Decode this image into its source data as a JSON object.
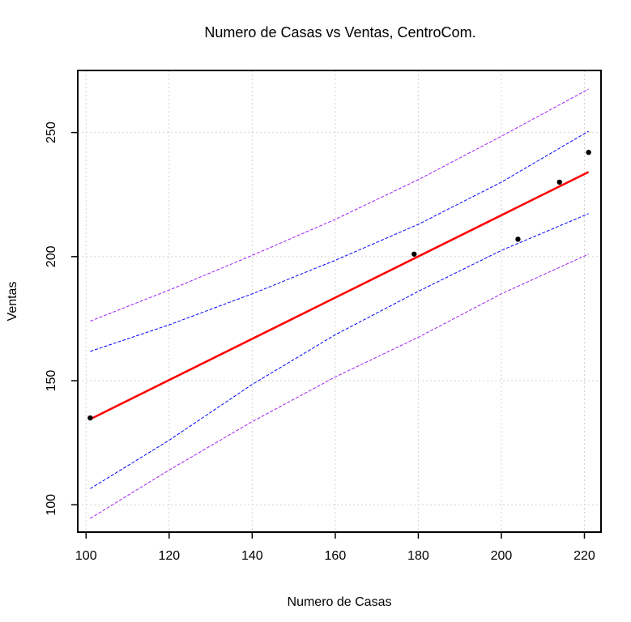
{
  "chart_data": {
    "type": "scatter",
    "title": "Numero de Casas vs Ventas, CentroCom.",
    "xlabel": "Numero de Casas",
    "ylabel": "Ventas",
    "xlim": [
      98,
      224
    ],
    "ylim": [
      89,
      275
    ],
    "x_ticks": [
      100,
      120,
      140,
      160,
      180,
      200,
      220
    ],
    "y_ticks": [
      100,
      150,
      200,
      250
    ],
    "grid": true,
    "points": {
      "x": [
        101,
        179,
        204,
        214,
        221
      ],
      "y": [
        135,
        201,
        207,
        230,
        242
      ]
    },
    "fit_line": {
      "x": [
        101,
        221
      ],
      "y": [
        134.5,
        234.1
      ],
      "color": "#ff0000"
    },
    "confidence_band": {
      "color": "#0000ff",
      "x": [
        101,
        120,
        140,
        160,
        180,
        200,
        221
      ],
      "upper": [
        161.8,
        172.5,
        185.0,
        198.5,
        213.0,
        230.0,
        250.5
      ],
      "lower": [
        106.5,
        126.0,
        148.5,
        168.5,
        186.0,
        202.5,
        217.3
      ]
    },
    "prediction_band": {
      "color": "#a020f0",
      "x": [
        101,
        120,
        140,
        160,
        180,
        200,
        221
      ],
      "upper": [
        174.0,
        186.5,
        200.5,
        215.0,
        231.0,
        248.5,
        267.5
      ],
      "lower": [
        94.5,
        114.0,
        133.5,
        151.5,
        167.5,
        185.0,
        201.0
      ]
    }
  }
}
